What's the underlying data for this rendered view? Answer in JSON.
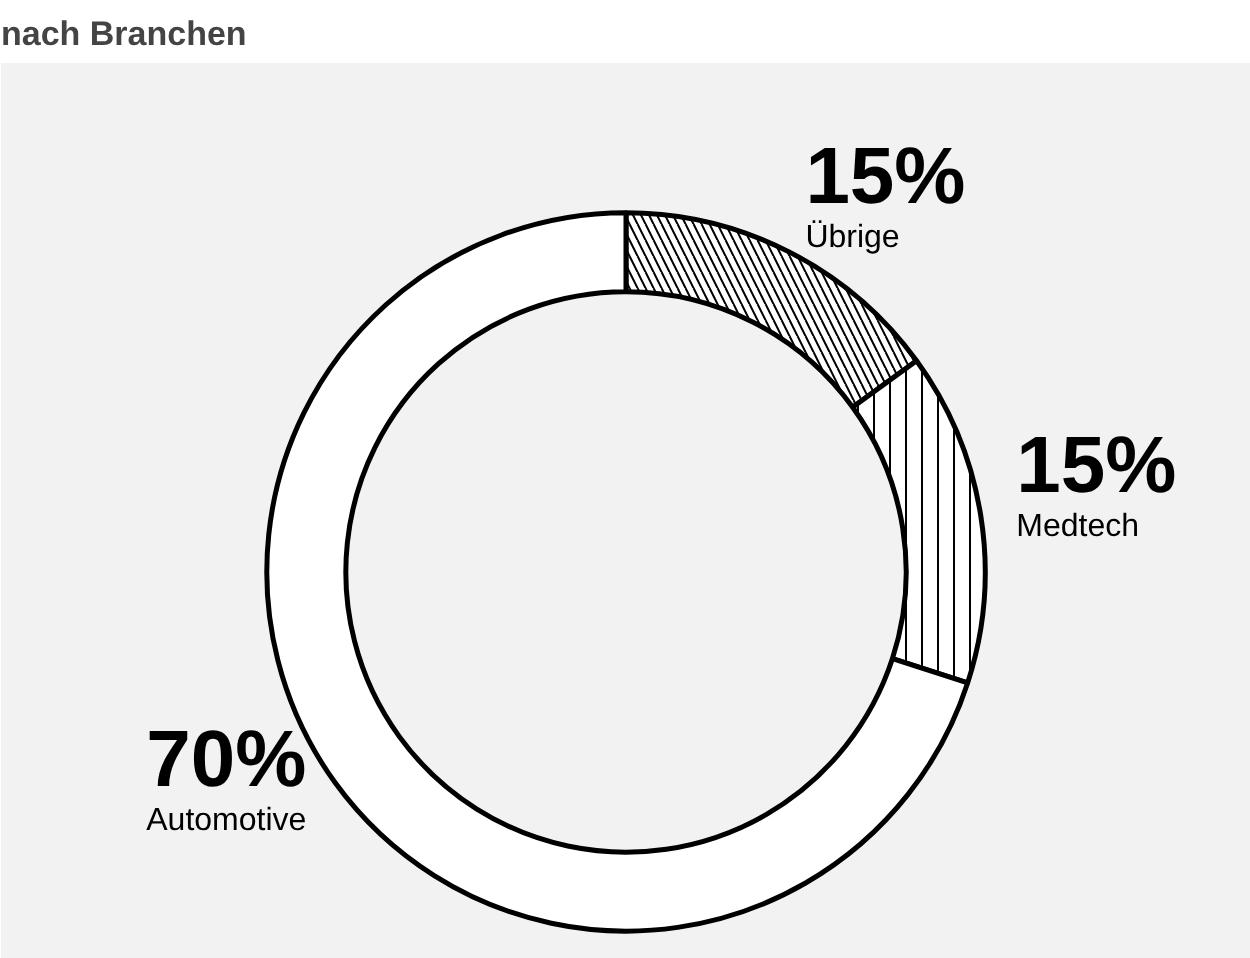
{
  "chart_data": {
    "type": "donut",
    "title": "nach Branchen",
    "categories": [
      "Übrige",
      "Medtech",
      "Automotive"
    ],
    "values": [
      15,
      15,
      70
    ],
    "colors": [
      "#ffffff",
      "#ffffff",
      "#ffffff"
    ],
    "value_labels": [
      "15%",
      "15%",
      "70%"
    ]
  }
}
